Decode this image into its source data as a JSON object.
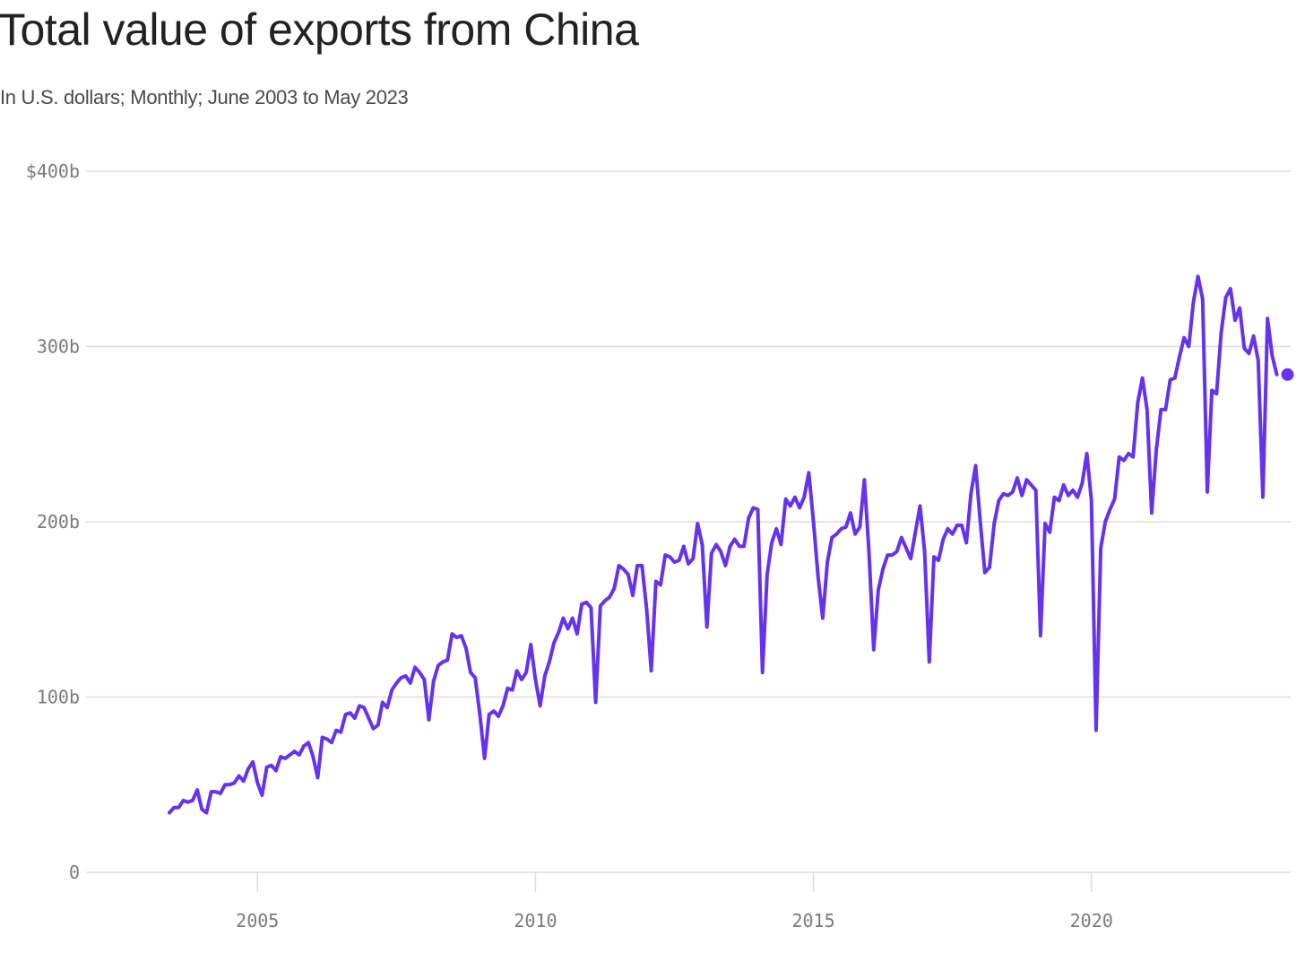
{
  "header": {
    "title": "Total value of exports from China",
    "subtitle": "In U.S. dollars; Monthly; June 2003 to May 2023"
  },
  "colors": {
    "line": "#6533ee",
    "grid": "#dddddd",
    "axis_text": "#7a7a7a",
    "title": "#222222",
    "subtitle": "#4a4a4a"
  },
  "chart_data": {
    "type": "line",
    "title": "Total value of exports from China",
    "subtitle": "In U.S. dollars; Monthly; June 2003 to May 2023",
    "xlabel": "",
    "ylabel": "",
    "ylim": [
      0,
      400
    ],
    "xlim": [
      "2001-12-01",
      "2023-08-01"
    ],
    "unit": "billion U.S. dollars",
    "grid": true,
    "y_ticks": [
      {
        "value": 0,
        "label": "0"
      },
      {
        "value": 100,
        "label": "100b"
      },
      {
        "value": 200,
        "label": "200b"
      },
      {
        "value": 300,
        "label": "300b"
      },
      {
        "value": 400,
        "label": "$400b"
      }
    ],
    "x_ticks": [
      {
        "value": "2005-01",
        "label": "2005"
      },
      {
        "value": "2010-01",
        "label": "2010"
      },
      {
        "value": "2015-01",
        "label": "2015"
      },
      {
        "value": "2020-01",
        "label": "2020"
      }
    ],
    "series": [
      {
        "x": [
          "2003-06",
          "2003-07",
          "2003-08",
          "2003-09",
          "2003-10",
          "2003-11",
          "2003-12",
          "2004-01",
          "2004-02",
          "2004-03",
          "2004-04",
          "2004-05",
          "2004-06",
          "2004-07",
          "2004-08",
          "2004-09",
          "2004-10",
          "2004-11",
          "2004-12",
          "2005-01",
          "2005-02",
          "2005-03",
          "2005-04",
          "2005-05",
          "2005-06",
          "2005-07",
          "2005-08",
          "2005-09",
          "2005-10",
          "2005-11",
          "2005-12",
          "2006-01",
          "2006-02",
          "2006-03",
          "2006-04",
          "2006-05",
          "2006-06",
          "2006-07",
          "2006-08",
          "2006-09",
          "2006-10",
          "2006-11",
          "2006-12",
          "2007-01",
          "2007-02",
          "2007-03",
          "2007-04",
          "2007-05",
          "2007-06",
          "2007-07",
          "2007-08",
          "2007-09",
          "2007-10",
          "2007-11",
          "2007-12",
          "2008-01",
          "2008-02",
          "2008-03",
          "2008-04",
          "2008-05",
          "2008-06",
          "2008-07",
          "2008-08",
          "2008-09",
          "2008-10",
          "2008-11",
          "2008-12",
          "2009-01",
          "2009-02",
          "2009-03",
          "2009-04",
          "2009-05",
          "2009-06",
          "2009-07",
          "2009-08",
          "2009-09",
          "2009-10",
          "2009-11",
          "2009-12",
          "2010-01",
          "2010-02",
          "2010-03",
          "2010-04",
          "2010-05",
          "2010-06",
          "2010-07",
          "2010-08",
          "2010-09",
          "2010-10",
          "2010-11",
          "2010-12",
          "2011-01",
          "2011-02",
          "2011-03",
          "2011-04",
          "2011-05",
          "2011-06",
          "2011-07",
          "2011-08",
          "2011-09",
          "2011-10",
          "2011-11",
          "2011-12",
          "2012-01",
          "2012-02",
          "2012-03",
          "2012-04",
          "2012-05",
          "2012-06",
          "2012-07",
          "2012-08",
          "2012-09",
          "2012-10",
          "2012-11",
          "2012-12",
          "2013-01",
          "2013-02",
          "2013-03",
          "2013-04",
          "2013-05",
          "2013-06",
          "2013-07",
          "2013-08",
          "2013-09",
          "2013-10",
          "2013-11",
          "2013-12",
          "2014-01",
          "2014-02",
          "2014-03",
          "2014-04",
          "2014-05",
          "2014-06",
          "2014-07",
          "2014-08",
          "2014-09",
          "2014-10",
          "2014-11",
          "2014-12",
          "2015-01",
          "2015-02",
          "2015-03",
          "2015-04",
          "2015-05",
          "2015-06",
          "2015-07",
          "2015-08",
          "2015-09",
          "2015-10",
          "2015-11",
          "2015-12",
          "2016-01",
          "2016-02",
          "2016-03",
          "2016-04",
          "2016-05",
          "2016-06",
          "2016-07",
          "2016-08",
          "2016-09",
          "2016-10",
          "2016-11",
          "2016-12",
          "2017-01",
          "2017-02",
          "2017-03",
          "2017-04",
          "2017-05",
          "2017-06",
          "2017-07",
          "2017-08",
          "2017-09",
          "2017-10",
          "2017-11",
          "2017-12",
          "2018-01",
          "2018-02",
          "2018-03",
          "2018-04",
          "2018-05",
          "2018-06",
          "2018-07",
          "2018-08",
          "2018-09",
          "2018-10",
          "2018-11",
          "2018-12",
          "2019-01",
          "2019-02",
          "2019-03",
          "2019-04",
          "2019-05",
          "2019-06",
          "2019-07",
          "2019-08",
          "2019-09",
          "2019-10",
          "2019-11",
          "2019-12",
          "2020-01",
          "2020-02",
          "2020-03",
          "2020-04",
          "2020-05",
          "2020-06",
          "2020-07",
          "2020-08",
          "2020-09",
          "2020-10",
          "2020-11",
          "2020-12",
          "2021-01",
          "2021-02",
          "2021-03",
          "2021-04",
          "2021-05",
          "2021-06",
          "2021-07",
          "2021-08",
          "2021-09",
          "2021-10",
          "2021-11",
          "2021-12",
          "2022-01",
          "2022-02",
          "2022-03",
          "2022-04",
          "2022-05",
          "2022-06",
          "2022-07",
          "2022-08",
          "2022-09",
          "2022-10",
          "2022-11",
          "2022-12",
          "2023-01",
          "2023-02",
          "2023-03",
          "2023-04",
          "2023-05"
        ],
        "values": [
          34,
          37,
          37,
          41,
          40,
          41,
          47,
          36,
          34,
          46,
          46,
          45,
          50,
          50,
          51,
          55,
          52,
          59,
          63,
          51,
          44,
          60,
          61,
          58,
          66,
          65,
          67,
          69,
          67,
          72,
          74,
          66,
          54,
          77,
          76,
          74,
          81,
          80,
          90,
          91,
          88,
          95,
          94,
          88,
          82,
          84,
          97,
          94,
          104,
          108,
          111,
          112,
          108,
          117,
          114,
          110,
          87,
          109,
          118,
          120,
          121,
          136,
          134,
          135,
          128,
          114,
          111,
          90,
          65,
          90,
          92,
          89,
          95,
          105,
          104,
          115,
          110,
          114,
          130,
          110,
          95,
          112,
          120,
          131,
          137,
          145,
          139,
          145,
          136,
          153,
          154,
          151,
          97,
          152,
          155,
          157,
          162,
          175,
          173,
          170,
          158,
          175,
          175,
          150,
          115,
          166,
          164,
          181,
          180,
          177,
          178,
          186,
          176,
          179,
          199,
          187,
          140,
          182,
          187,
          183,
          175,
          186,
          190,
          186,
          186,
          202,
          208,
          207,
          114,
          170,
          188,
          196,
          187,
          213,
          209,
          214,
          208,
          214,
          228,
          200,
          169,
          145,
          177,
          191,
          193,
          196,
          197,
          205,
          193,
          197,
          224,
          182,
          127,
          161,
          173,
          181,
          181,
          183,
          191,
          185,
          179,
          194,
          209,
          183,
          120,
          180,
          178,
          190,
          196,
          193,
          198,
          198,
          188,
          216,
          232,
          200,
          171,
          174,
          199,
          212,
          216,
          215,
          217,
          225,
          215,
          224,
          221,
          218,
          135,
          199,
          194,
          214,
          212,
          221,
          215,
          218,
          214,
          222,
          239,
          212,
          81,
          185,
          200,
          207,
          213,
          237,
          235,
          239,
          237,
          268,
          282,
          264,
          205,
          241,
          264,
          264,
          281,
          282,
          294,
          305,
          300,
          325,
          340,
          327,
          217,
          275,
          273,
          308,
          328,
          333,
          315,
          322,
          299,
          296,
          306,
          292,
          214,
          316,
          295,
          284
        ]
      }
    ],
    "highlight_point": {
      "x": "2023-05",
      "value": 284
    }
  }
}
